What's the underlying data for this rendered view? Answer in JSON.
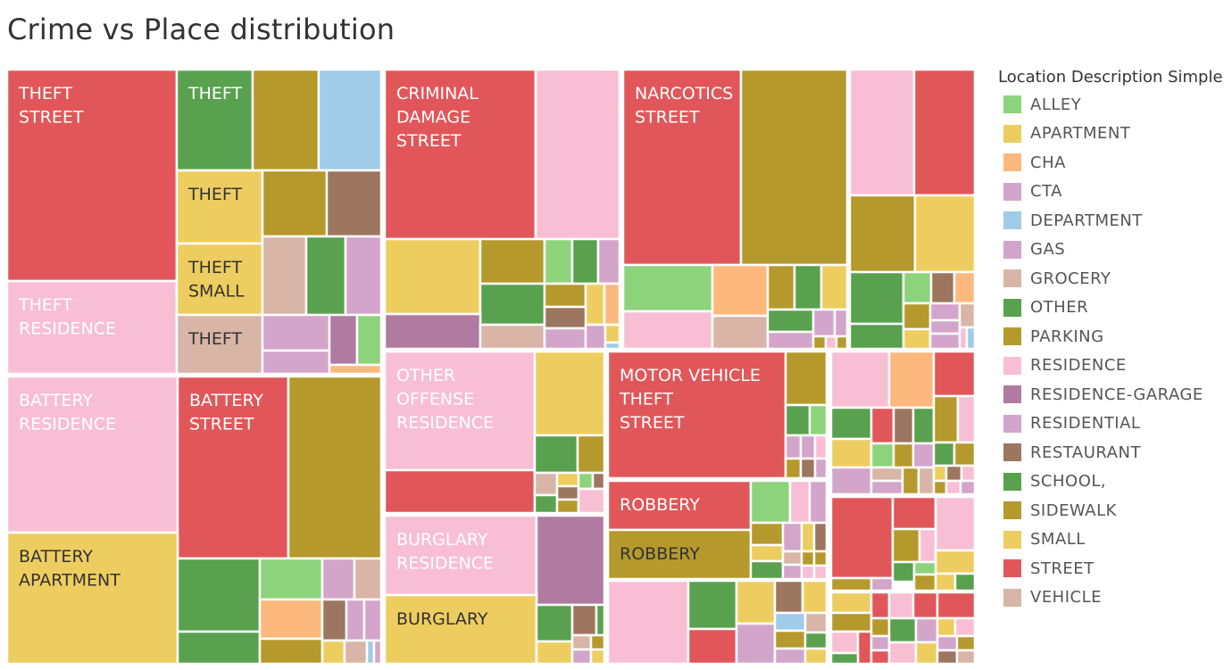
{
  "title": "Crime vs Place distribution",
  "legend_title": "Location Description Simple",
  "categories": [
    {
      "name": "ALLEY",
      "color": "#8dd37c"
    },
    {
      "name": "APARTMENT",
      "color": "#eecd60"
    },
    {
      "name": "CHA",
      "color": "#fdb97d"
    },
    {
      "name": "CTA",
      "color": "#d3a5ca"
    },
    {
      "name": "DEPARTMENT",
      "color": "#a0cbe9"
    },
    {
      "name": "GAS",
      "color": "#d3a5ca"
    },
    {
      "name": "GROCERY",
      "color": "#d8b5a6"
    },
    {
      "name": "OTHER",
      "color": "#59a14f"
    },
    {
      "name": "PARKING",
      "color": "#b5992c"
    },
    {
      "name": "RESIDENCE",
      "color": "#f8bfd4"
    },
    {
      "name": "RESIDENCE-GARAGE",
      "color": "#b07aa1"
    },
    {
      "name": "RESIDENTIAL",
      "color": "#d3a5ca"
    },
    {
      "name": "RESTAURANT",
      "color": "#9d7660"
    },
    {
      "name": "SCHOOL,",
      "color": "#59a14f"
    },
    {
      "name": "SIDEWALK",
      "color": "#b5992c"
    },
    {
      "name": "SMALL",
      "color": "#eecd60"
    },
    {
      "name": "STREET",
      "color": "#e15759"
    },
    {
      "name": "VEHICLE",
      "color": "#d8b5a6"
    }
  ],
  "chart_data": {
    "type": "treemap",
    "title": "Crime vs Place distribution",
    "color_legend": "Location Description Simple",
    "labeled_cells": [
      {
        "lines": [
          "THEFT",
          "STREET"
        ],
        "location": "STREET"
      },
      {
        "lines": [
          "THEFT",
          "RESIDENCE"
        ],
        "location": "RESIDENCE"
      },
      {
        "lines": [
          "THEFT"
        ],
        "location": "OTHER"
      },
      {
        "lines": [
          "THEFT"
        ],
        "location": "APARTMENT"
      },
      {
        "lines": [
          "THEFT",
          "SMALL"
        ],
        "location": "SMALL"
      },
      {
        "lines": [
          "THEFT"
        ],
        "location": "GROCERY"
      },
      {
        "lines": [
          "BATTERY",
          "RESIDENCE"
        ],
        "location": "RESIDENCE"
      },
      {
        "lines": [
          "BATTERY",
          "STREET"
        ],
        "location": "STREET"
      },
      {
        "lines": [
          "BATTERY",
          "APARTMENT"
        ],
        "location": "APARTMENT"
      },
      {
        "lines": [
          "CRIMINAL",
          "DAMAGE",
          "STREET"
        ],
        "location": "STREET"
      },
      {
        "lines": [
          "NARCOTICS",
          "STREET"
        ],
        "location": "STREET"
      },
      {
        "lines": [
          "OTHER",
          "OFFENSE",
          "RESIDENCE"
        ],
        "location": "RESIDENCE"
      },
      {
        "lines": [
          "MOTOR VEHICLE",
          "THEFT",
          "STREET"
        ],
        "location": "STREET"
      },
      {
        "lines": [
          "BURGLARY",
          "RESIDENCE"
        ],
        "location": "RESIDENCE"
      },
      {
        "lines": [
          "BURGLARY"
        ],
        "location": "APARTMENT"
      },
      {
        "lines": [
          "ROBBERY"
        ],
        "location": "STREET"
      },
      {
        "lines": [
          "ROBBERY"
        ],
        "location": "SIDEWALK"
      }
    ]
  }
}
